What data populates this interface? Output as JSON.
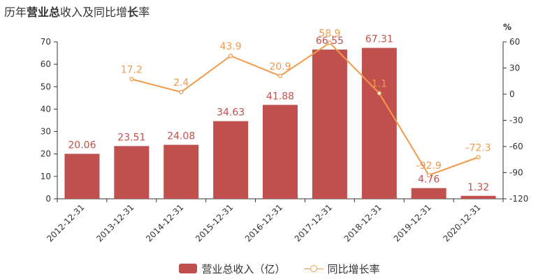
{
  "title": {
    "parts": [
      {
        "text": "历年",
        "bold": false
      },
      {
        "text": "营业总",
        "bold": true
      },
      {
        "text": "收入及同比增",
        "bold": false
      },
      {
        "text": "长",
        "bold": true
      },
      {
        "text": "率",
        "bold": false
      }
    ]
  },
  "chart_data": {
    "type": "bar",
    "title": "历年营业总收入及同比增长率",
    "categories": [
      "2012-12-31",
      "2013-12-31",
      "2014-12-31",
      "2015-12-31",
      "2016-12-31",
      "2017-12-31",
      "2018-12-31",
      "2019-12-31",
      "2020-12-31"
    ],
    "series": [
      {
        "name": "营业总收入（亿）",
        "type": "bar",
        "axis": "left",
        "color": "#c0504d",
        "values": [
          20.06,
          23.51,
          24.08,
          34.63,
          41.88,
          66.55,
          67.31,
          4.76,
          1.32
        ],
        "labels": [
          "20.06",
          "23.51",
          "24.08",
          "34.63",
          "41.88",
          "66.55",
          "67.31",
          "4.76",
          "1.32"
        ]
      },
      {
        "name": "同比增长率",
        "type": "line",
        "axis": "right",
        "color": "#f19a4b",
        "values": [
          null,
          17.2,
          2.4,
          43.9,
          20.9,
          58.9,
          1.1,
          -92.9,
          -72.3
        ],
        "labels": [
          "",
          "17.2",
          "2.4",
          "43.9",
          "20.9",
          "58.9",
          "1.1",
          "-92.9",
          "-72.3"
        ]
      }
    ],
    "y_left": {
      "min": 0,
      "max": 70,
      "ticks": [
        0,
        10,
        20,
        30,
        40,
        50,
        60,
        70
      ]
    },
    "y_right": {
      "min": -120,
      "max": 60,
      "ticks": [
        -120,
        -90,
        -60,
        -30,
        0,
        30,
        60
      ],
      "unit": "%"
    },
    "grid": false,
    "legend_position": "bottom"
  }
}
